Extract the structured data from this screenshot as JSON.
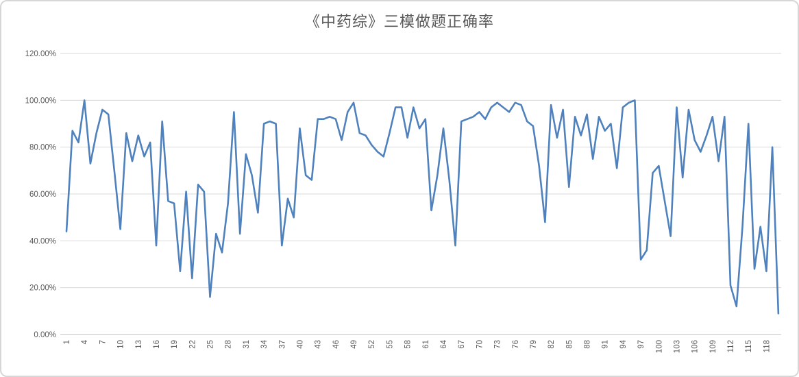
{
  "title": "《中药综》三模做题正确率",
  "chart_data": {
    "type": "line",
    "title": "《中药综》三模做题正确率",
    "xlabel": "",
    "ylabel": "",
    "grid": "horizontal",
    "legend": "none",
    "ylim": [
      0,
      120
    ],
    "y_tick_step_pct": 20,
    "y_tick_labels": [
      "0.00%",
      "20.00%",
      "40.00%",
      "60.00%",
      "80.00%",
      "100.00%",
      "120.00%"
    ],
    "x_tick_labels": [
      "1",
      "4",
      "7",
      "10",
      "13",
      "16",
      "19",
      "22",
      "25",
      "28",
      "31",
      "34",
      "37",
      "40",
      "43",
      "46",
      "49",
      "52",
      "55",
      "58",
      "61",
      "64",
      "67",
      "70",
      "73",
      "76",
      "79",
      "82",
      "85",
      "88",
      "91",
      "94",
      "97",
      "100",
      "103",
      "106",
      "109",
      "112",
      "115",
      "118"
    ],
    "x_tick_step": 3,
    "categories_range": [
      1,
      120
    ],
    "series": [
      {
        "name": "做题正确率",
        "values_pct": [
          44,
          87,
          82,
          100,
          73,
          86,
          96,
          94,
          70,
          45,
          86,
          74,
          85,
          76,
          82,
          38,
          91,
          57,
          56,
          27,
          61,
          24,
          64,
          61,
          16,
          43,
          35,
          56,
          95,
          43,
          77,
          68,
          52,
          90,
          91,
          90,
          38,
          58,
          50,
          88,
          68,
          66,
          92,
          92,
          93,
          92,
          83,
          95,
          99,
          86,
          85,
          81,
          78,
          76,
          86,
          97,
          97,
          84,
          97,
          88,
          92,
          53,
          68,
          88,
          66,
          38,
          91,
          92,
          93,
          95,
          92,
          97,
          99,
          97,
          95,
          99,
          98,
          91,
          89,
          72,
          48,
          98,
          84,
          96,
          63,
          93,
          85,
          94,
          75,
          93,
          87,
          90,
          71,
          97,
          99,
          100,
          32,
          36,
          69,
          72,
          57,
          42,
          97,
          67,
          96,
          83,
          78,
          85,
          93,
          74,
          93,
          21,
          12,
          46,
          90,
          28,
          46,
          27,
          80,
          9
        ]
      }
    ],
    "colors": {
      "line": "#4F81BD",
      "gridline": "#d9d9d9",
      "axis_line": "#bfbfbf",
      "tick_label": "#595959",
      "title": "#595959",
      "background": "#ffffff",
      "border": "#d6d6d6"
    }
  }
}
